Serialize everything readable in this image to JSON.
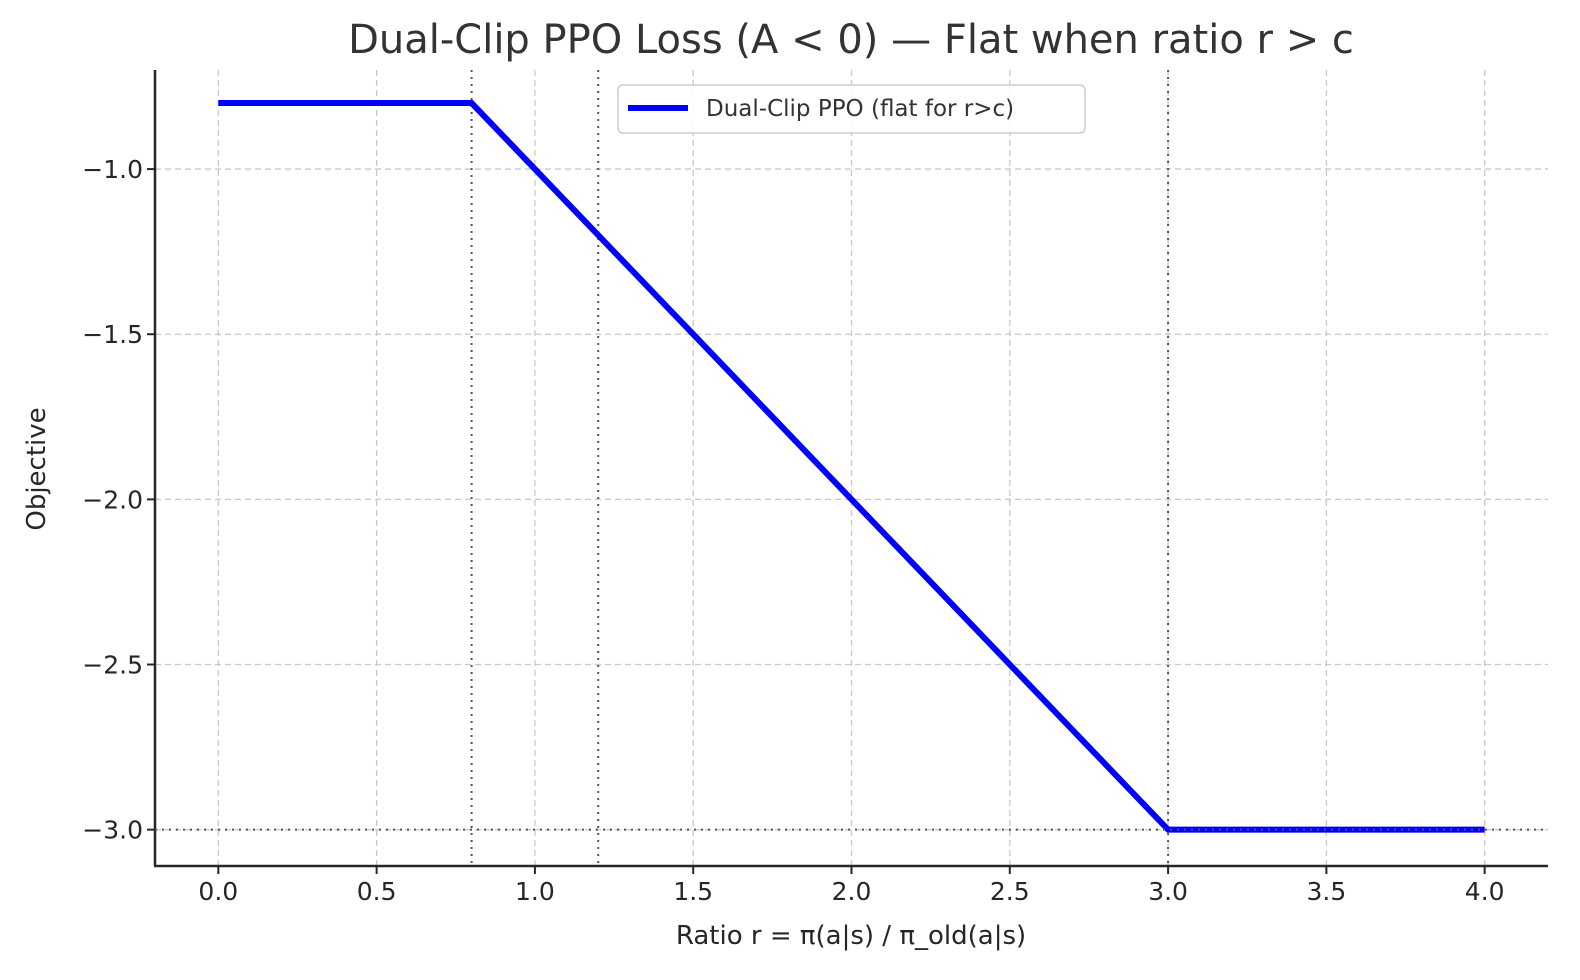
{
  "chart_data": {
    "type": "line",
    "title": "Dual-Clip PPO Loss (A < 0) — Flat when ratio r > c",
    "xlabel": "Ratio r = π(a|s) / π_old(a|s)",
    "ylabel": "Objective",
    "xlim": [
      -0.2,
      4.2
    ],
    "ylim": [
      -3.11,
      -0.7
    ],
    "xticks": [
      0.0,
      0.5,
      1.0,
      1.5,
      2.0,
      2.5,
      3.0,
      3.5,
      4.0
    ],
    "xtick_labels": [
      "0.0",
      "0.5",
      "1.0",
      "1.5",
      "2.0",
      "2.5",
      "3.0",
      "3.5",
      "4.0"
    ],
    "yticks": [
      -1.0,
      -1.5,
      -2.0,
      -2.5,
      -3.0
    ],
    "ytick_labels": [
      "−1.0",
      "−1.5",
      "−2.0",
      "−2.5",
      "−3.0"
    ],
    "grid": true,
    "legend": {
      "placement": "top-center",
      "entries": [
        "Dual-Clip PPO (flat for r>c)"
      ]
    },
    "series": [
      {
        "name": "Dual-Clip PPO (flat for r>c)",
        "color": "#0000ff",
        "x": [
          0.0,
          0.8,
          3.0,
          4.0
        ],
        "y": [
          -0.8,
          -0.8,
          -3.0,
          -3.0
        ]
      }
    ],
    "reference_lines": {
      "vertical": [
        0.8,
        1.2,
        3.0
      ],
      "horizontal": [
        -3.0
      ],
      "style": "dotted",
      "color": "#555555"
    }
  }
}
